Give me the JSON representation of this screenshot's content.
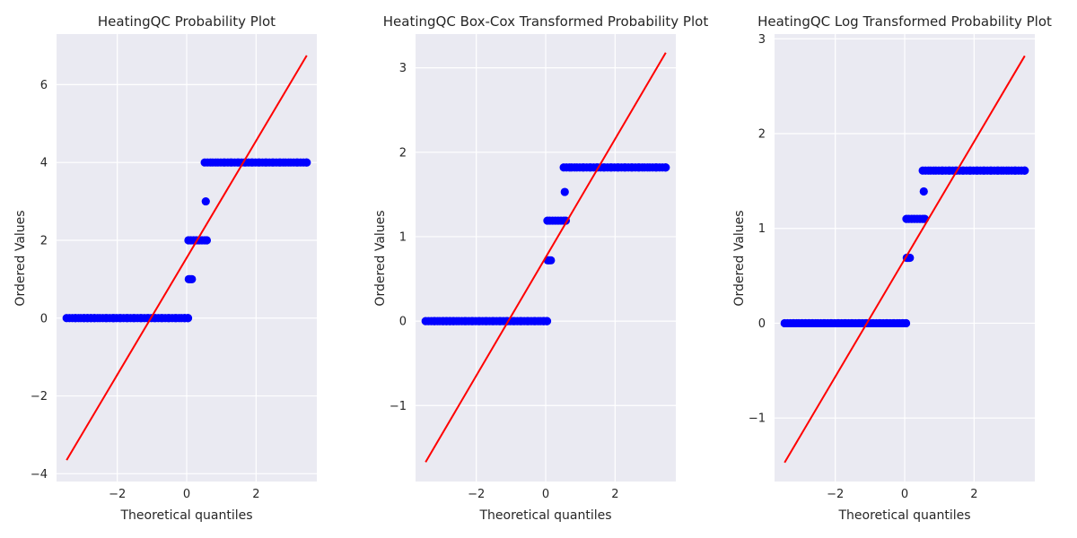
{
  "chart_data": [
    {
      "type": "scatter",
      "title": "HeatingQC Probability Plot",
      "xlabel": "Theoretical quantiles",
      "ylabel": "Ordered Values",
      "xlim": [
        -3.75,
        3.75
      ],
      "ylim": [
        -4.2,
        7.3
      ],
      "xticks": [
        -2,
        0,
        2
      ],
      "xtick_labels": [
        "−2",
        "0",
        "2"
      ],
      "yticks": [
        -4,
        -2,
        0,
        2,
        4,
        6
      ],
      "ytick_labels": [
        "−4",
        "−2",
        "0",
        "2",
        "4",
        "6"
      ],
      "grid": true,
      "points_color": "#0000ff",
      "line_color": "#ff0000",
      "fit_line": {
        "x": [
          -3.46,
          3.46
        ],
        "y": [
          -3.65,
          6.75
        ]
      },
      "series": [
        {
          "points": [
            [
              -3.46,
              0
            ],
            [
              -3.2,
              0
            ],
            [
              -3.05,
              0
            ],
            [
              -2.95,
              0
            ],
            [
              -2.85,
              0
            ],
            [
              -2.75,
              0
            ],
            [
              -2.65,
              0
            ],
            [
              -2.5,
              0
            ],
            [
              -2.3,
              0
            ],
            [
              -2.1,
              0
            ],
            [
              -1.9,
              0
            ],
            [
              -1.7,
              0
            ],
            [
              -1.5,
              0
            ],
            [
              -1.3,
              0
            ],
            [
              -1.1,
              0
            ],
            [
              -0.9,
              0
            ],
            [
              -0.7,
              0
            ],
            [
              -0.5,
              0
            ],
            [
              -0.3,
              0
            ],
            [
              -0.15,
              0
            ],
            [
              -0.05,
              0
            ],
            [
              0.04,
              0
            ],
            [
              0.06,
              1
            ],
            [
              0.1,
              1
            ],
            [
              0.15,
              1
            ],
            [
              0.05,
              2
            ],
            [
              0.12,
              2
            ],
            [
              0.2,
              2
            ],
            [
              0.28,
              2
            ],
            [
              0.36,
              2
            ],
            [
              0.44,
              2
            ],
            [
              0.52,
              2
            ],
            [
              0.58,
              2
            ],
            [
              0.55,
              3
            ],
            [
              0.52,
              4
            ],
            [
              0.6,
              4
            ],
            [
              0.75,
              4
            ],
            [
              0.9,
              4
            ],
            [
              1.1,
              4
            ],
            [
              1.3,
              4
            ],
            [
              1.5,
              4
            ],
            [
              1.7,
              4
            ],
            [
              1.9,
              4
            ],
            [
              2.1,
              4
            ],
            [
              2.3,
              4
            ],
            [
              2.5,
              4
            ],
            [
              2.7,
              4
            ],
            [
              2.85,
              4
            ],
            [
              3.0,
              4
            ],
            [
              3.2,
              4
            ],
            [
              3.46,
              4
            ]
          ]
        }
      ]
    },
    {
      "type": "scatter",
      "title": "HeatingQC Box-Cox Transformed Probability Plot",
      "xlabel": "Theoretical quantiles",
      "ylabel": "Ordered Values",
      "xlim": [
        -3.75,
        3.75
      ],
      "ylim": [
        -1.9,
        3.4
      ],
      "xticks": [
        -2,
        0,
        2
      ],
      "xtick_labels": [
        "−2",
        "0",
        "2"
      ],
      "yticks": [
        -1,
        0,
        1,
        2,
        3
      ],
      "ytick_labels": [
        "−1",
        "0",
        "1",
        "2",
        "3"
      ],
      "grid": true,
      "points_color": "#0000ff",
      "line_color": "#ff0000",
      "fit_line": {
        "x": [
          -3.46,
          3.46
        ],
        "y": [
          -1.67,
          3.18
        ]
      },
      "series": [
        {
          "points": [
            [
              -3.46,
              0
            ],
            [
              -3.2,
              0
            ],
            [
              -3.05,
              0
            ],
            [
              -2.95,
              0
            ],
            [
              -2.85,
              0
            ],
            [
              -2.75,
              0
            ],
            [
              -2.65,
              0
            ],
            [
              -2.5,
              0
            ],
            [
              -2.3,
              0
            ],
            [
              -2.1,
              0
            ],
            [
              -1.9,
              0
            ],
            [
              -1.7,
              0
            ],
            [
              -1.5,
              0
            ],
            [
              -1.3,
              0
            ],
            [
              -1.1,
              0
            ],
            [
              -0.9,
              0
            ],
            [
              -0.7,
              0
            ],
            [
              -0.5,
              0
            ],
            [
              -0.3,
              0
            ],
            [
              -0.15,
              0
            ],
            [
              -0.05,
              0
            ],
            [
              0.04,
              0
            ],
            [
              0.06,
              0.72
            ],
            [
              0.1,
              0.72
            ],
            [
              0.15,
              0.72
            ],
            [
              0.05,
              1.19
            ],
            [
              0.12,
              1.19
            ],
            [
              0.2,
              1.19
            ],
            [
              0.28,
              1.19
            ],
            [
              0.36,
              1.19
            ],
            [
              0.44,
              1.19
            ],
            [
              0.52,
              1.19
            ],
            [
              0.58,
              1.19
            ],
            [
              0.55,
              1.53
            ],
            [
              0.52,
              1.82
            ],
            [
              0.6,
              1.82
            ],
            [
              0.75,
              1.82
            ],
            [
              0.9,
              1.82
            ],
            [
              1.1,
              1.82
            ],
            [
              1.3,
              1.82
            ],
            [
              1.5,
              1.82
            ],
            [
              1.7,
              1.82
            ],
            [
              1.9,
              1.82
            ],
            [
              2.1,
              1.82
            ],
            [
              2.3,
              1.82
            ],
            [
              2.5,
              1.82
            ],
            [
              2.7,
              1.82
            ],
            [
              2.85,
              1.82
            ],
            [
              3.0,
              1.82
            ],
            [
              3.2,
              1.82
            ],
            [
              3.46,
              1.82
            ]
          ]
        }
      ]
    },
    {
      "type": "scatter",
      "title": "HeatingQC Log Transformed Probability Plot",
      "xlabel": "Theoretical quantiles",
      "ylabel": "Ordered Values",
      "xlim": [
        -3.75,
        3.75
      ],
      "ylim": [
        -1.67,
        3.05
      ],
      "xticks": [
        -2,
        0,
        2
      ],
      "xtick_labels": [
        "−2",
        "0",
        "2"
      ],
      "yticks": [
        -1,
        0,
        1,
        2,
        3
      ],
      "ytick_labels": [
        "−1",
        "0",
        "1",
        "2",
        "3"
      ],
      "grid": true,
      "points_color": "#0000ff",
      "line_color": "#ff0000",
      "fit_line": {
        "x": [
          -3.46,
          3.46
        ],
        "y": [
          -1.47,
          2.82
        ]
      },
      "series": [
        {
          "points": [
            [
              -3.46,
              0
            ],
            [
              -3.2,
              0
            ],
            [
              -3.05,
              0
            ],
            [
              -2.95,
              0
            ],
            [
              -2.85,
              0
            ],
            [
              -2.75,
              0
            ],
            [
              -2.65,
              0
            ],
            [
              -2.5,
              0
            ],
            [
              -2.3,
              0
            ],
            [
              -2.1,
              0
            ],
            [
              -1.9,
              0
            ],
            [
              -1.7,
              0
            ],
            [
              -1.5,
              0
            ],
            [
              -1.3,
              0
            ],
            [
              -1.1,
              0
            ],
            [
              -0.9,
              0
            ],
            [
              -0.7,
              0
            ],
            [
              -0.5,
              0
            ],
            [
              -0.3,
              0
            ],
            [
              -0.15,
              0
            ],
            [
              -0.05,
              0
            ],
            [
              0.04,
              0
            ],
            [
              0.06,
              0.69
            ],
            [
              0.1,
              0.69
            ],
            [
              0.15,
              0.69
            ],
            [
              0.05,
              1.1
            ],
            [
              0.12,
              1.1
            ],
            [
              0.2,
              1.1
            ],
            [
              0.28,
              1.1
            ],
            [
              0.36,
              1.1
            ],
            [
              0.44,
              1.1
            ],
            [
              0.52,
              1.1
            ],
            [
              0.58,
              1.1
            ],
            [
              0.55,
              1.39
            ],
            [
              0.52,
              1.61
            ],
            [
              0.6,
              1.61
            ],
            [
              0.75,
              1.61
            ],
            [
              0.9,
              1.61
            ],
            [
              1.1,
              1.61
            ],
            [
              1.3,
              1.61
            ],
            [
              1.5,
              1.61
            ],
            [
              1.7,
              1.61
            ],
            [
              1.9,
              1.61
            ],
            [
              2.1,
              1.61
            ],
            [
              2.3,
              1.61
            ],
            [
              2.5,
              1.61
            ],
            [
              2.7,
              1.61
            ],
            [
              2.85,
              1.61
            ],
            [
              3.0,
              1.61
            ],
            [
              3.2,
              1.61
            ],
            [
              3.46,
              1.61
            ]
          ]
        }
      ]
    }
  ]
}
